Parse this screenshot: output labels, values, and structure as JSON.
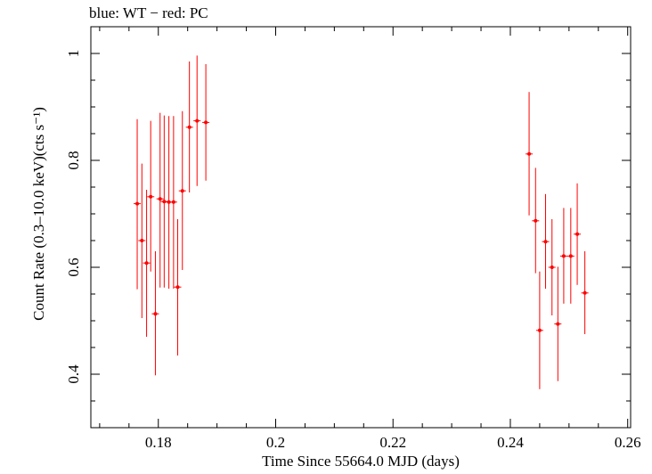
{
  "chart_data": {
    "type": "scatter",
    "title": "blue: WT − red: PC",
    "xlabel": "Time Since 55664.0 MJD (days)",
    "ylabel": "Count Rate (0.3–10.0 keV)(cts s⁻¹)",
    "xlim": [
      0.1685,
      0.2605
    ],
    "ylim": [
      0.3,
      1.05
    ],
    "xticks": [
      0.18,
      0.2,
      0.22,
      0.24,
      0.26
    ],
    "xtick_labels": [
      "0.18",
      "0.2",
      "0.22",
      "0.24",
      "0.26"
    ],
    "yticks": [
      0.4,
      0.6,
      0.8,
      1.0
    ],
    "ytick_labels": [
      "0.4",
      "0.6",
      "0.8",
      "1"
    ],
    "series": [
      {
        "name": "PC",
        "color": "#ff0000",
        "points": [
          {
            "x": 0.1764,
            "y": 0.719,
            "lo": 0.559,
            "hi": 0.877
          },
          {
            "x": 0.1772,
            "y": 0.65,
            "lo": 0.505,
            "hi": 0.794
          },
          {
            "x": 0.178,
            "y": 0.608,
            "lo": 0.47,
            "hi": 0.745
          },
          {
            "x": 0.1787,
            "y": 0.732,
            "lo": 0.592,
            "hi": 0.874
          },
          {
            "x": 0.1795,
            "y": 0.513,
            "lo": 0.398,
            "hi": 0.63
          },
          {
            "x": 0.1803,
            "y": 0.728,
            "lo": 0.562,
            "hi": 0.889
          },
          {
            "x": 0.181,
            "y": 0.723,
            "lo": 0.562,
            "hi": 0.884
          },
          {
            "x": 0.1818,
            "y": 0.722,
            "lo": 0.56,
            "hi": 0.883
          },
          {
            "x": 0.1826,
            "y": 0.722,
            "lo": 0.56,
            "hi": 0.883
          },
          {
            "x": 0.1833,
            "y": 0.563,
            "lo": 0.435,
            "hi": 0.69
          },
          {
            "x": 0.1841,
            "y": 0.743,
            "lo": 0.595,
            "hi": 0.892
          },
          {
            "x": 0.1853,
            "y": 0.862,
            "lo": 0.74,
            "hi": 0.985
          },
          {
            "x": 0.1866,
            "y": 0.874,
            "lo": 0.752,
            "hi": 0.996
          },
          {
            "x": 0.1881,
            "y": 0.871,
            "lo": 0.762,
            "hi": 0.98
          },
          {
            "x": 0.2432,
            "y": 0.812,
            "lo": 0.697,
            "hi": 0.928
          },
          {
            "x": 0.2443,
            "y": 0.687,
            "lo": 0.589,
            "hi": 0.786
          },
          {
            "x": 0.245,
            "y": 0.482,
            "lo": 0.372,
            "hi": 0.592
          },
          {
            "x": 0.246,
            "y": 0.648,
            "lo": 0.56,
            "hi": 0.737
          },
          {
            "x": 0.2471,
            "y": 0.6,
            "lo": 0.51,
            "hi": 0.69
          },
          {
            "x": 0.2481,
            "y": 0.494,
            "lo": 0.387,
            "hi": 0.601
          },
          {
            "x": 0.2491,
            "y": 0.621,
            "lo": 0.532,
            "hi": 0.711
          },
          {
            "x": 0.2503,
            "y": 0.621,
            "lo": 0.532,
            "hi": 0.711
          },
          {
            "x": 0.2514,
            "y": 0.662,
            "lo": 0.567,
            "hi": 0.757
          },
          {
            "x": 0.2527,
            "y": 0.552,
            "lo": 0.475,
            "hi": 0.63
          }
        ]
      }
    ]
  }
}
